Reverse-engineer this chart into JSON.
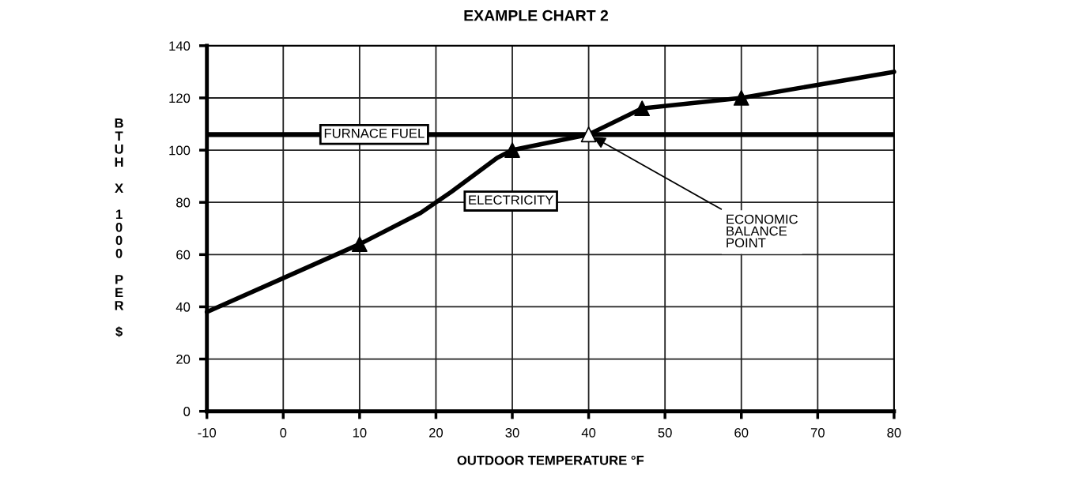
{
  "chart_data": {
    "type": "line",
    "title": "EXAMPLE CHART 2",
    "xlabel": "OUTDOOR TEMPERATURE °F",
    "ylabel": "BTUH X 1000 PER $",
    "xlim": [
      -10,
      80
    ],
    "xticks": [
      -10,
      0,
      10,
      20,
      30,
      40,
      50,
      60,
      70,
      80
    ],
    "ylim": [
      0,
      140
    ],
    "yticks": [
      0,
      20,
      40,
      60,
      80,
      100,
      120,
      140
    ],
    "grid": true,
    "line_style": "solid",
    "series": [
      {
        "name": "ELECTRICITY",
        "color": "#000000",
        "marker": "none",
        "x": [
          -10,
          0,
          10,
          18,
          22,
          28,
          30,
          40,
          47,
          60,
          80
        ],
        "values": [
          38,
          51,
          64,
          76,
          84,
          97,
          100,
          106,
          116,
          120,
          130
        ]
      },
      {
        "type": "scatter",
        "color": "#000000",
        "marker": "triangle",
        "x": [
          10,
          30,
          47,
          60
        ],
        "values": [
          64,
          100,
          116,
          120
        ]
      },
      {
        "type": "scatter",
        "color": "#ffffff",
        "marker": "triangle",
        "x": [
          40
        ],
        "values": [
          106
        ]
      }
    ],
    "ref_lines": [
      {
        "axis": "y",
        "value": 106,
        "label": "FURNACE FUEL",
        "color": "#000000",
        "line_style": "solid"
      }
    ],
    "annotations": [
      {
        "text": "ECONOMIC\nBALANCE\nPOINT",
        "x": 40,
        "y": 106
      }
    ]
  }
}
